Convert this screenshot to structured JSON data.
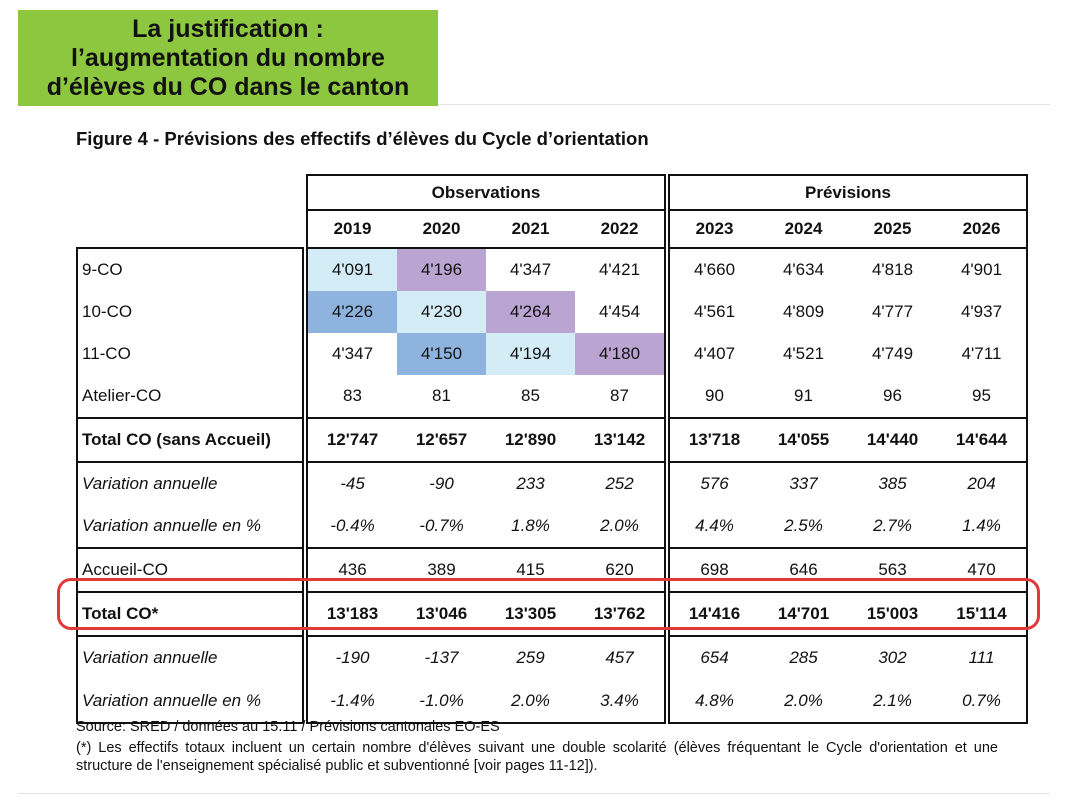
{
  "slide_title": [
    "La justification :",
    "l’augmentation du nombre",
    "d’élèves du CO dans le canton"
  ],
  "figure_caption": "Figure 4 - Prévisions des effectifs d’élèves du Cycle d’orientation",
  "table": {
    "group_headers": [
      "Observations",
      "Prévisions"
    ],
    "years": [
      "2019",
      "2020",
      "2021",
      "2022",
      "2023",
      "2024",
      "2025",
      "2026"
    ],
    "rows": [
      {
        "label": "9-CO",
        "values": [
          "4'091",
          "4'196",
          "4'347",
          "4'421",
          "4'660",
          "4'634",
          "4'818",
          "4'901"
        ]
      },
      {
        "label": "10-CO",
        "values": [
          "4'226",
          "4'230",
          "4'264",
          "4'454",
          "4'561",
          "4'809",
          "4'777",
          "4'937"
        ]
      },
      {
        "label": "11-CO",
        "values": [
          "4'347",
          "4'150",
          "4'194",
          "4'180",
          "4'407",
          "4'521",
          "4'749",
          "4'711"
        ]
      },
      {
        "label": "Atelier-CO",
        "values": [
          "83",
          "81",
          "85",
          "87",
          "90",
          "91",
          "96",
          "95"
        ]
      },
      {
        "label": "Total CO (sans Accueil)",
        "values": [
          "12'747",
          "12'657",
          "12'890",
          "13'142",
          "13'718",
          "14'055",
          "14'440",
          "14'644"
        ]
      },
      {
        "label": "Variation annuelle",
        "values": [
          "-45",
          "-90",
          "233",
          "252",
          "576",
          "337",
          "385",
          "204"
        ]
      },
      {
        "label": "Variation annuelle en %",
        "values": [
          "-0.4%",
          "-0.7%",
          "1.8%",
          "2.0%",
          "4.4%",
          "2.5%",
          "2.7%",
          "1.4%"
        ]
      },
      {
        "label": "Accueil-CO",
        "values": [
          "436",
          "389",
          "415",
          "620",
          "698",
          "646",
          "563",
          "470"
        ]
      },
      {
        "label": "Total CO*",
        "values": [
          "13'183",
          "13'046",
          "13'305",
          "13'762",
          "14'416",
          "14'701",
          "15'003",
          "15'114"
        ]
      },
      {
        "label": "Variation annuelle",
        "values": [
          "-190",
          "-137",
          "259",
          "457",
          "654",
          "285",
          "302",
          "111"
        ]
      },
      {
        "label": "Variation annuelle en %",
        "values": [
          "-1.4%",
          "-1.0%",
          "2.0%",
          "3.4%",
          "4.8%",
          "2.0%",
          "2.1%",
          "0.7%"
        ]
      }
    ]
  },
  "cell_colors": {
    "light_blue": "#d4ecf6",
    "blue": "#8fb3df",
    "purple": "#b9a4d2",
    "title_green": "#8dc63f",
    "highlight_red": "#de3a3a"
  },
  "source": "Source: SRED / données au 15.11 / Prévisions cantonales EO-ES",
  "footnote": "(*) Les effectifs totaux incluent un certain nombre d'élèves suivant une double scolarité (élèves fréquentant le Cycle d'orientation et une structure de l'enseignement spécialisé public et subventionné [voir pages 11-12])."
}
